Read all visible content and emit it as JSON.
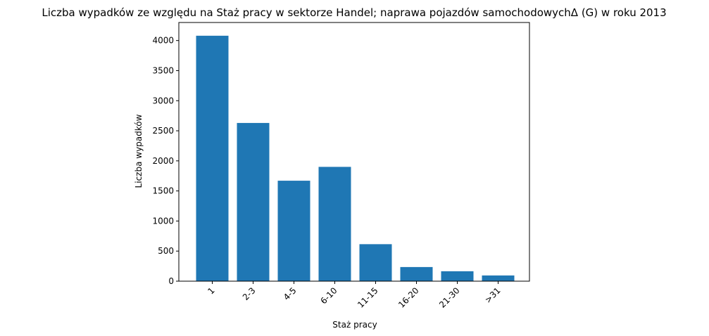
{
  "chart_data": {
    "type": "bar",
    "title": "Liczba wypadków ze względu na Staż pracy w sektorze Handel; naprawa pojazdów samochodowychΔ (G) w roku 2013",
    "xlabel": "Staż pracy",
    "ylabel": "Liczba wypadków",
    "categories": [
      "1",
      "2-3",
      "4-5",
      "6-10",
      "11-15",
      "16-20",
      "21-30",
      ">31"
    ],
    "values": [
      4080,
      2630,
      1670,
      1900,
      615,
      235,
      165,
      95
    ],
    "ylim": [
      0,
      4300
    ],
    "yticks": [
      "0",
      "500",
      "1000",
      "1500",
      "2000",
      "2500",
      "3000",
      "3500",
      "4000"
    ],
    "bar_color": "#1f77b4",
    "grid": false,
    "legend": "none"
  }
}
